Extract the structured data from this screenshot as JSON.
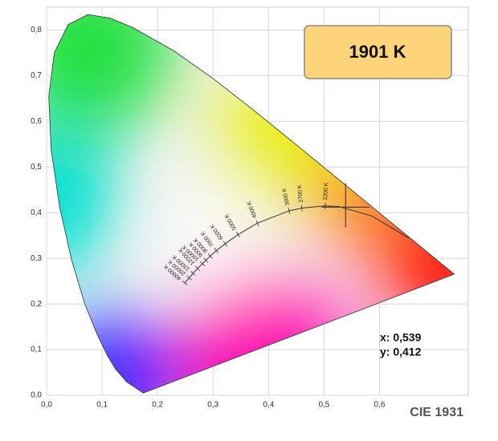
{
  "chart_data": {
    "type": "chromaticity",
    "title": "CIE 1931",
    "xlim": [
      0,
      0.76
    ],
    "ylim": [
      0,
      0.85
    ],
    "xticks": [
      {
        "value": 0,
        "label": "0,0"
      },
      {
        "value": 0.1,
        "label": "0,1"
      },
      {
        "value": 0.2,
        "label": "0,2"
      },
      {
        "value": 0.3,
        "label": "0,3"
      },
      {
        "value": 0.4,
        "label": "0,4"
      },
      {
        "value": 0.5,
        "label": "0,5"
      },
      {
        "value": 0.6,
        "label": "0,6"
      }
    ],
    "yticks": [
      {
        "value": 0,
        "label": "0,0"
      },
      {
        "value": 0.1,
        "label": "0,1"
      },
      {
        "value": 0.2,
        "label": "0,2"
      },
      {
        "value": 0.3,
        "label": "0,3"
      },
      {
        "value": 0.4,
        "label": "0,4"
      },
      {
        "value": 0.5,
        "label": "0,5"
      },
      {
        "value": 0.6,
        "label": "0,6"
      },
      {
        "value": 0.7,
        "label": "0,7"
      },
      {
        "value": 0.8,
        "label": "0,8"
      }
    ],
    "grid": true,
    "spectral_locus": {
      "x": [
        0.1741,
        0.144,
        0.1241,
        0.1096,
        0.0913,
        0.0687,
        0.0454,
        0.0235,
        0.0082,
        0.0039,
        0.0139,
        0.0389,
        0.0743,
        0.1142,
        0.1547,
        0.2296,
        0.3016,
        0.3731,
        0.4441,
        0.5125,
        0.5752,
        0.627,
        0.6658,
        0.6915,
        0.719,
        0.7347
      ],
      "y": [
        0.005,
        0.0297,
        0.0578,
        0.0868,
        0.1327,
        0.2007,
        0.295,
        0.4127,
        0.5384,
        0.6548,
        0.7502,
        0.812,
        0.8338,
        0.8262,
        0.8059,
        0.7543,
        0.6923,
        0.6245,
        0.5547,
        0.4866,
        0.4242,
        0.3725,
        0.334,
        0.3083,
        0.2809,
        0.2653
      ]
    },
    "planckian_locus": {
      "x": [
        0.249,
        0.257,
        0.264,
        0.272,
        0.281,
        0.287,
        0.295,
        0.306,
        0.322,
        0.345,
        0.38,
        0.437,
        0.46,
        0.502,
        0.5267,
        0.5857,
        0.6528
      ],
      "y": [
        0.246,
        0.257,
        0.267,
        0.278,
        0.288,
        0.296,
        0.305,
        0.317,
        0.332,
        0.352,
        0.377,
        0.404,
        0.41,
        0.415,
        0.4133,
        0.3931,
        0.3444
      ],
      "labels": [
        "40000 K",
        "20000 K",
        "15000 K",
        "12000 K",
        "10000 K",
        "9000 K",
        "8000 K",
        "7000 K",
        "6000 K",
        "5000 K",
        "4000 K",
        "3000 K",
        "2700 K",
        "2200 K",
        null,
        null,
        null
      ]
    },
    "readout": {
      "label": "1901 K",
      "x": 0.539,
      "y": 0.412,
      "value_labels": [
        "x: 0,539",
        "y: 0,412"
      ]
    }
  }
}
